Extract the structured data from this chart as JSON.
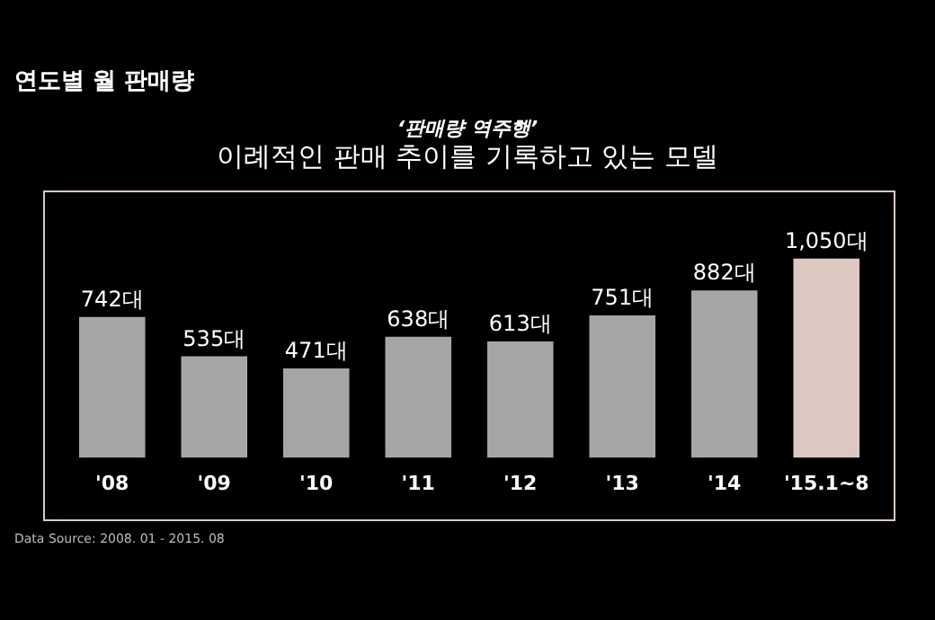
{
  "chart_data": {
    "type": "bar",
    "title": "연도별 월 판매량",
    "subtitle": "‘판매량 역주행’",
    "categories": [
      "'08",
      "'09",
      "'10",
      "'11",
      "'12",
      "'13",
      "'14",
      "'15.1~8"
    ],
    "values": [
      742,
      535,
      471,
      638,
      613,
      751,
      882,
      1050
    ],
    "colors": [
      "#a6a6a6",
      "#a6a6a6",
      "#a6a6a6",
      "#a6a6a6",
      "#a6a6a6",
      "#a6a6a6",
      "#a6a6a6",
      "#dcc8c0"
    ],
    "value_labels": [
      "742대",
      "535대",
      "471대",
      "638대",
      "613대",
      "751대",
      "882대",
      "1,050대"
    ],
    "annotations": [
      "이례적인 판매 추이를 기록하고 있는 모델",
      "Data Source: 2008. 01 - 2015. 08"
    ],
    "legend": false
  }
}
